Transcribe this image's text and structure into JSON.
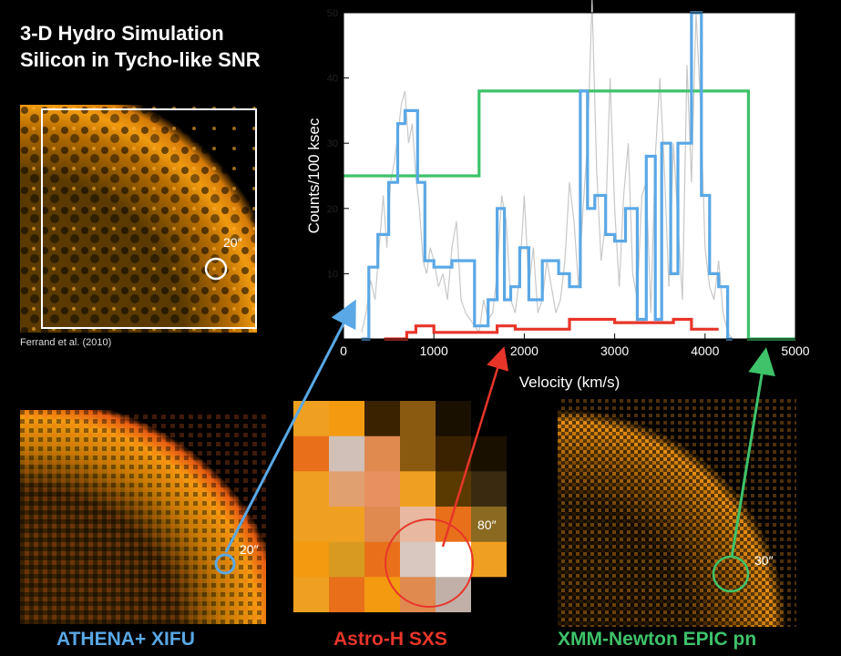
{
  "title_line1": "3-D Hydro Simulation",
  "title_line2": "Silicon in Tycho-like SNR",
  "credit": "Ferrand et al. (2010)",
  "sim_scale": "20″",
  "athena": {
    "label": "ATHENA+ XIFU",
    "scale": "20″",
    "color": "#5aa8e6"
  },
  "astroh": {
    "label": "Astro-H SXS",
    "scale": "80″",
    "color": "#e8352a"
  },
  "xmm": {
    "label": "XMM-Newton EPIC pn",
    "scale": "30″",
    "color": "#3ec26a"
  },
  "chart_data": {
    "type": "line",
    "xlabel": "Velocity (km/s)",
    "ylabel": "Counts/100 ksec",
    "xlim": [
      0,
      5000
    ],
    "ylim": [
      0,
      50
    ],
    "xticks": [
      "0",
      "1000",
      "2000",
      "3000",
      "4000",
      "5000"
    ],
    "yticks": [
      "0",
      "10",
      "20",
      "30",
      "40",
      "50"
    ],
    "series": [
      {
        "color": "#3ec26a",
        "step": true,
        "x": [
          0,
          1500,
          1500,
          4480,
          4480,
          5000
        ],
        "y": [
          25,
          25,
          38,
          38,
          0,
          0
        ]
      },
      {
        "color": "#5aa8e6",
        "step": true,
        "x": [
          200,
          280,
          280,
          380,
          380,
          500,
          500,
          600,
          600,
          680,
          680,
          820,
          820,
          900,
          900,
          1000,
          1000,
          1200,
          1200,
          1450,
          1450,
          1600,
          1600,
          1700,
          1700,
          1780,
          1780,
          1850,
          1850,
          1950,
          1950,
          2050,
          2050,
          2200,
          2200,
          2380,
          2380,
          2500,
          2500,
          2620,
          2620,
          2700,
          2700,
          2780,
          2780,
          2900,
          2900,
          3000,
          3000,
          3120,
          3120,
          3250,
          3250,
          3350,
          3350,
          3450,
          3450,
          3520,
          3520,
          3620,
          3620,
          3700,
          3700,
          3850,
          3850,
          3960,
          3960,
          4050,
          4050,
          4150,
          4150,
          4250,
          4250,
          4300
        ],
        "y": [
          0,
          0,
          11,
          11,
          16,
          16,
          24,
          24,
          33,
          33,
          35,
          35,
          24,
          24,
          12,
          12,
          11,
          11,
          12,
          12,
          2,
          2,
          6,
          6,
          20,
          20,
          6,
          6,
          8,
          8,
          14,
          14,
          6,
          6,
          12,
          12,
          10,
          10,
          8,
          8,
          38,
          38,
          20,
          20,
          22,
          22,
          16,
          16,
          15,
          15,
          20,
          20,
          3,
          3,
          28,
          28,
          3,
          3,
          30,
          30,
          10,
          10,
          30,
          30,
          50,
          50,
          22,
          22,
          10,
          10,
          8,
          8,
          0,
          0
        ]
      },
      {
        "color": "#e8352a",
        "step": true,
        "x": [
          450,
          700,
          700,
          800,
          800,
          1000,
          1000,
          1700,
          1700,
          1900,
          1900,
          2500,
          2500,
          3000,
          3000,
          3300,
          3300,
          3650,
          3650,
          3850,
          3850,
          4150
        ],
        "y": [
          0,
          0,
          1,
          1,
          2,
          2,
          1,
          1,
          2,
          2,
          1.5,
          1.5,
          3,
          3,
          2.5,
          2.5,
          2.5,
          2.5,
          3,
          3,
          1.5,
          1.5
        ]
      },
      {
        "color": "#c8c8c8",
        "step": false,
        "x": [
          200,
          250,
          300,
          350,
          400,
          440,
          480,
          520,
          560,
          600,
          640,
          680,
          720,
          760,
          800,
          840,
          880,
          920,
          960,
          1000,
          1050,
          1100,
          1150,
          1200,
          1250,
          1300,
          1350,
          1400,
          1450,
          1500,
          1550,
          1600,
          1650,
          1700,
          1750,
          1800,
          1850,
          1900,
          1950,
          2000,
          2050,
          2100,
          2150,
          2200,
          2250,
          2300,
          2350,
          2400,
          2450,
          2500,
          2550,
          2600,
          2650,
          2700,
          2750,
          2800,
          2850,
          2900,
          2950,
          3000,
          3050,
          3100,
          3150,
          3200,
          3250,
          3300,
          3350,
          3400,
          3450,
          3500,
          3550,
          3600,
          3650,
          3700,
          3750,
          3800,
          3850,
          3900,
          3950,
          4000,
          4050,
          4100,
          4150,
          4200,
          4250,
          4300
        ],
        "y": [
          1,
          4,
          9,
          6,
          15,
          22,
          14,
          24,
          27,
          31,
          36,
          38,
          30,
          33,
          25,
          20,
          12,
          10,
          14,
          12,
          8,
          10,
          6,
          14,
          18,
          6,
          4,
          3,
          2,
          1,
          6,
          3,
          4,
          10,
          22,
          18,
          6,
          4,
          10,
          22,
          8,
          14,
          4,
          6,
          12,
          8,
          4,
          6,
          12,
          24,
          18,
          8,
          20,
          30,
          52,
          26,
          12,
          18,
          40,
          20,
          8,
          22,
          30,
          10,
          6,
          22,
          24,
          4,
          28,
          40,
          26,
          8,
          30,
          18,
          6,
          42,
          24,
          50,
          36,
          14,
          8,
          6,
          12,
          4,
          1,
          0
        ]
      }
    ]
  }
}
